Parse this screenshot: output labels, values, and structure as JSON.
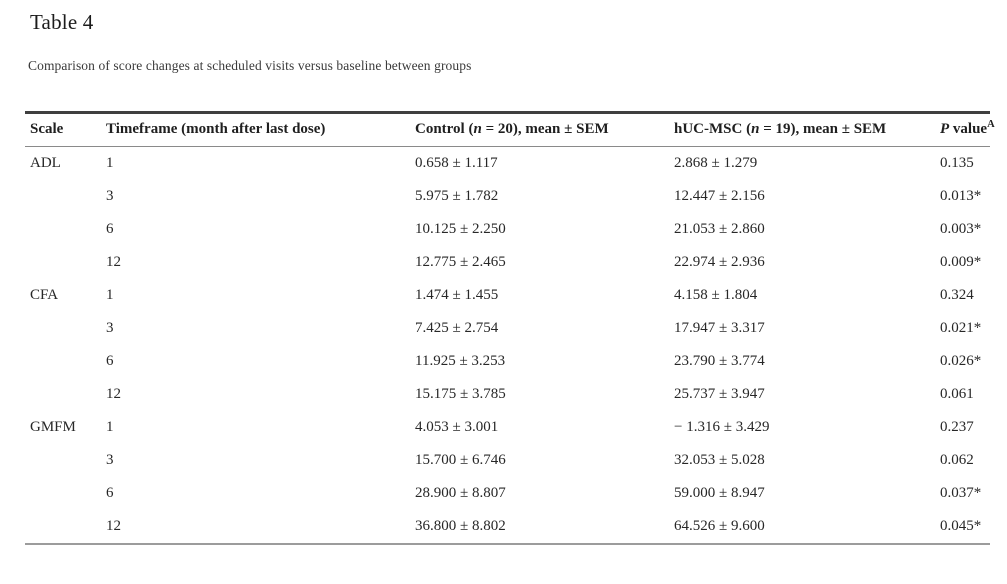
{
  "table": {
    "title": "Table 4",
    "caption": "Comparison of score changes at scheduled visits versus baseline between groups",
    "headers": {
      "scale": "Scale",
      "timeframe": "Timeframe (month after last dose)",
      "control": {
        "pre": "Control (",
        "var": "n",
        "post": " = 20), mean ± SEM"
      },
      "hucmsc": {
        "pre": "hUC-MSC (",
        "var": "n",
        "post": " = 19), mean ± SEM"
      },
      "pvalue": {
        "var": "P",
        "post": " value",
        "sup": "A"
      }
    },
    "rows": [
      {
        "scale": "ADL",
        "timeframe": "1",
        "control": "0.658 ± 1.117",
        "hucmsc": "2.868 ± 1.279",
        "pvalue": "0.135"
      },
      {
        "scale": "",
        "timeframe": "3",
        "control": "5.975 ± 1.782",
        "hucmsc": "12.447 ± 2.156",
        "pvalue": "0.013*"
      },
      {
        "scale": "",
        "timeframe": "6",
        "control": "10.125 ± 2.250",
        "hucmsc": "21.053 ± 2.860",
        "pvalue": "0.003*"
      },
      {
        "scale": "",
        "timeframe": "12",
        "control": "12.775 ± 2.465",
        "hucmsc": "22.974 ± 2.936",
        "pvalue": "0.009*"
      },
      {
        "scale": "CFA",
        "timeframe": "1",
        "control": "1.474 ± 1.455",
        "hucmsc": "4.158 ± 1.804",
        "pvalue": "0.324"
      },
      {
        "scale": "",
        "timeframe": "3",
        "control": "7.425 ± 2.754",
        "hucmsc": "17.947 ± 3.317",
        "pvalue": "0.021*"
      },
      {
        "scale": "",
        "timeframe": "6",
        "control": "11.925 ± 3.253",
        "hucmsc": "23.790 ± 3.774",
        "pvalue": "0.026*"
      },
      {
        "scale": "",
        "timeframe": "12",
        "control": "15.175 ± 3.785",
        "hucmsc": "25.737 ± 3.947",
        "pvalue": "0.061"
      },
      {
        "scale": "GMFM",
        "timeframe": "1",
        "control": "4.053 ± 3.001",
        "hucmsc": "− 1.316 ± 3.429",
        "pvalue": "0.237"
      },
      {
        "scale": "",
        "timeframe": "3",
        "control": "15.700 ± 6.746",
        "hucmsc": "32.053 ± 5.028",
        "pvalue": "0.062"
      },
      {
        "scale": "",
        "timeframe": "6",
        "control": "28.900 ± 8.807",
        "hucmsc": "59.000 ± 8.947",
        "pvalue": "0.037*"
      },
      {
        "scale": "",
        "timeframe": "12",
        "control": "36.800 ± 8.802",
        "hucmsc": "64.526 ± 9.600",
        "pvalue": "0.045*"
      }
    ]
  }
}
